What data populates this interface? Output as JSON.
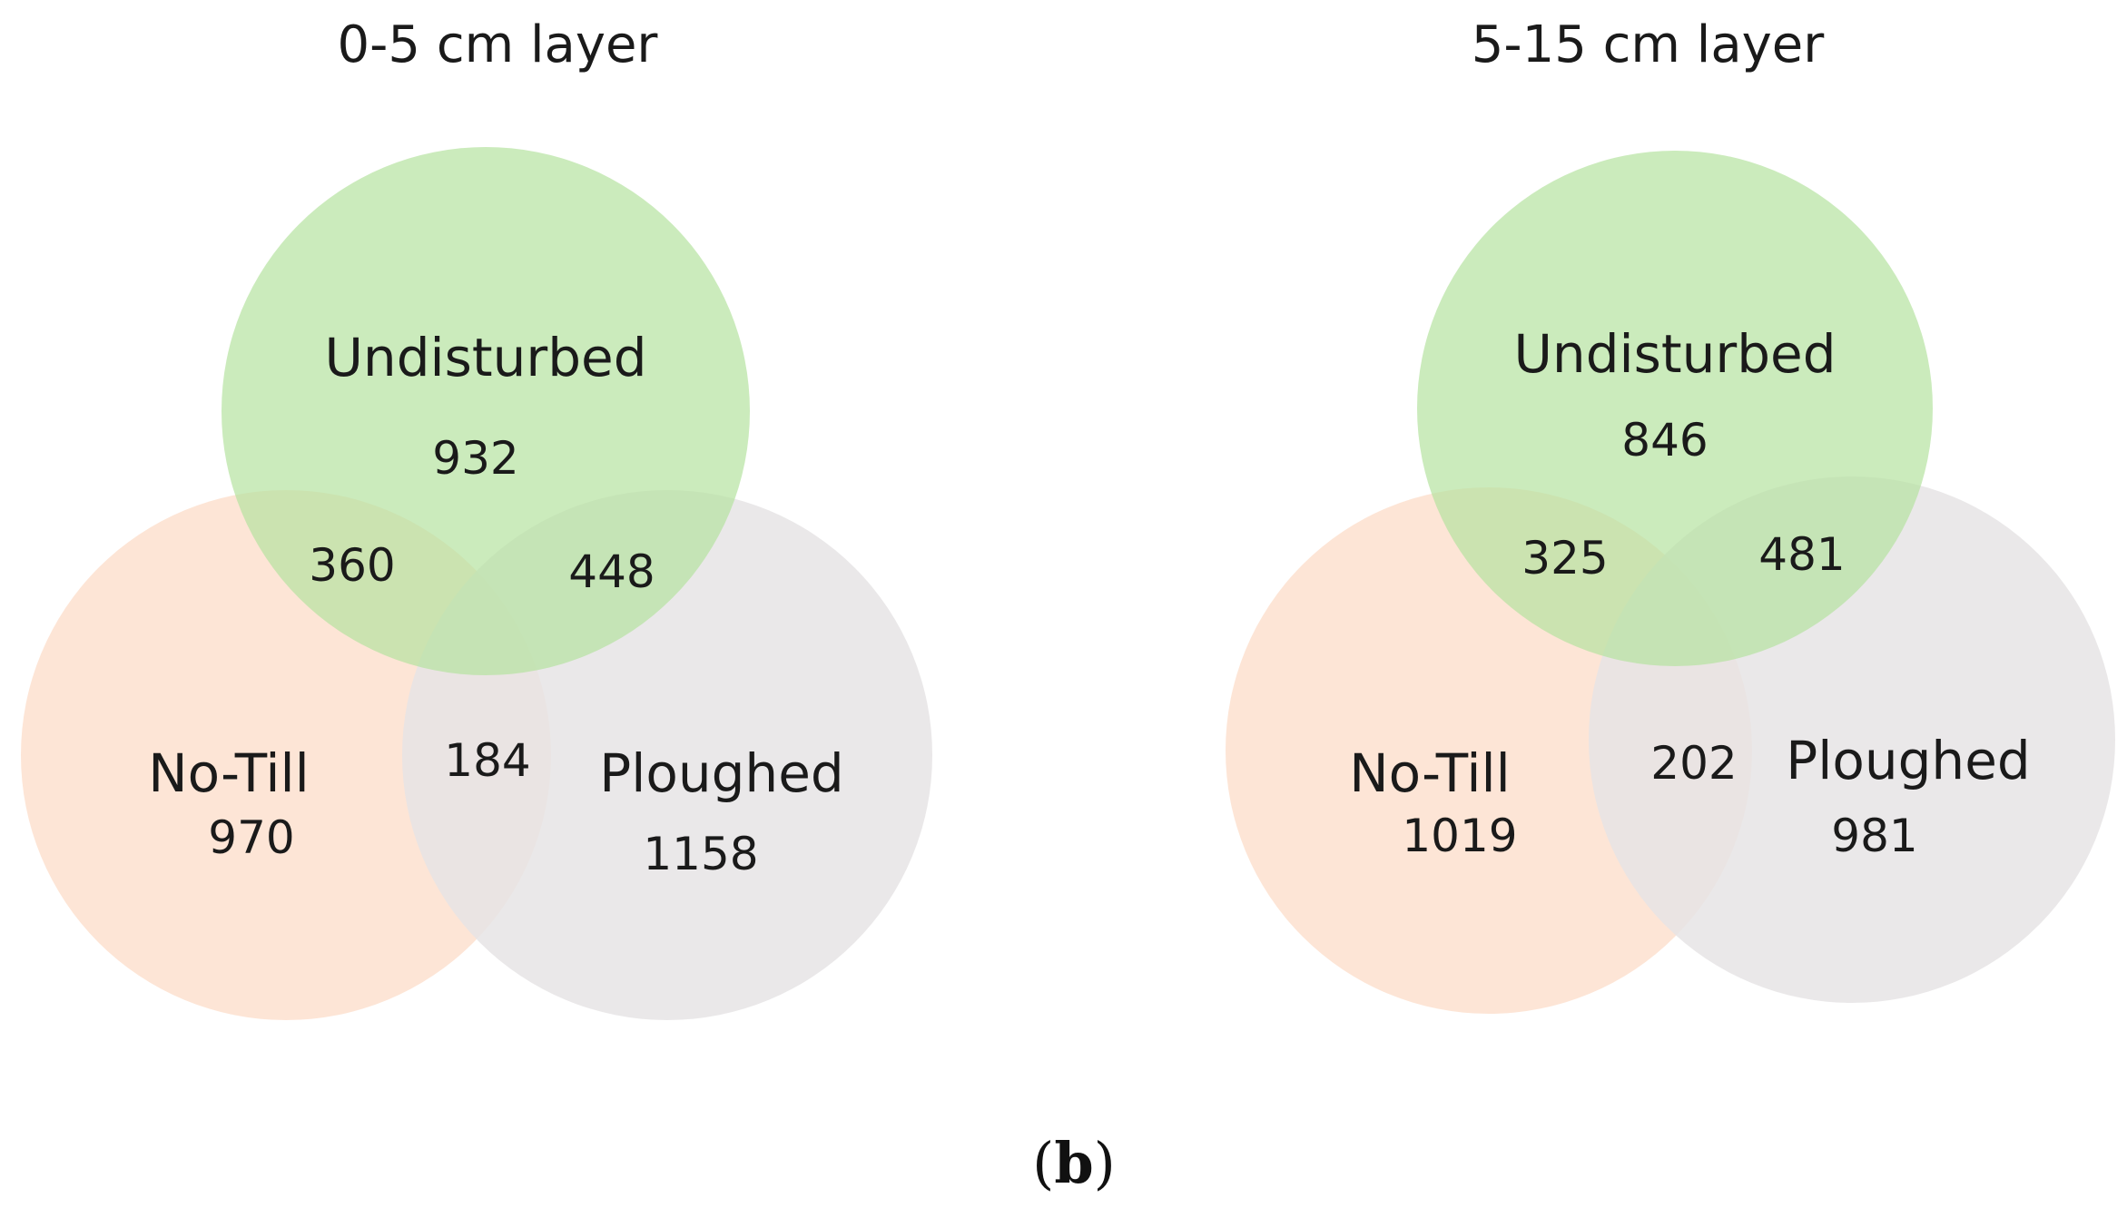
{
  "diagrams": [
    {
      "title": "0-5 cm layer",
      "sets": {
        "top": "Undisturbed",
        "left": "No-Till",
        "right": "Ploughed"
      },
      "counts": {
        "top_only": "932",
        "left_only": "970",
        "right_only": "1158",
        "top_left": "360",
        "top_right": "448",
        "left_right": "184"
      }
    },
    {
      "title": "5-15 cm layer",
      "sets": {
        "top": "Undisturbed",
        "left": "No-Till",
        "right": "Ploughed"
      },
      "counts": {
        "top_only": "846",
        "left_only": "1019",
        "right_only": "981",
        "top_left": "325",
        "top_right": "481",
        "left_right": "202"
      }
    }
  ],
  "caption": {
    "open": "(",
    "letter": "b",
    "close": ")"
  },
  "colors": {
    "undisturbed": "#b5e3a0",
    "no_till": "#fde0cf",
    "ploughed": "#e6e4e5"
  }
}
